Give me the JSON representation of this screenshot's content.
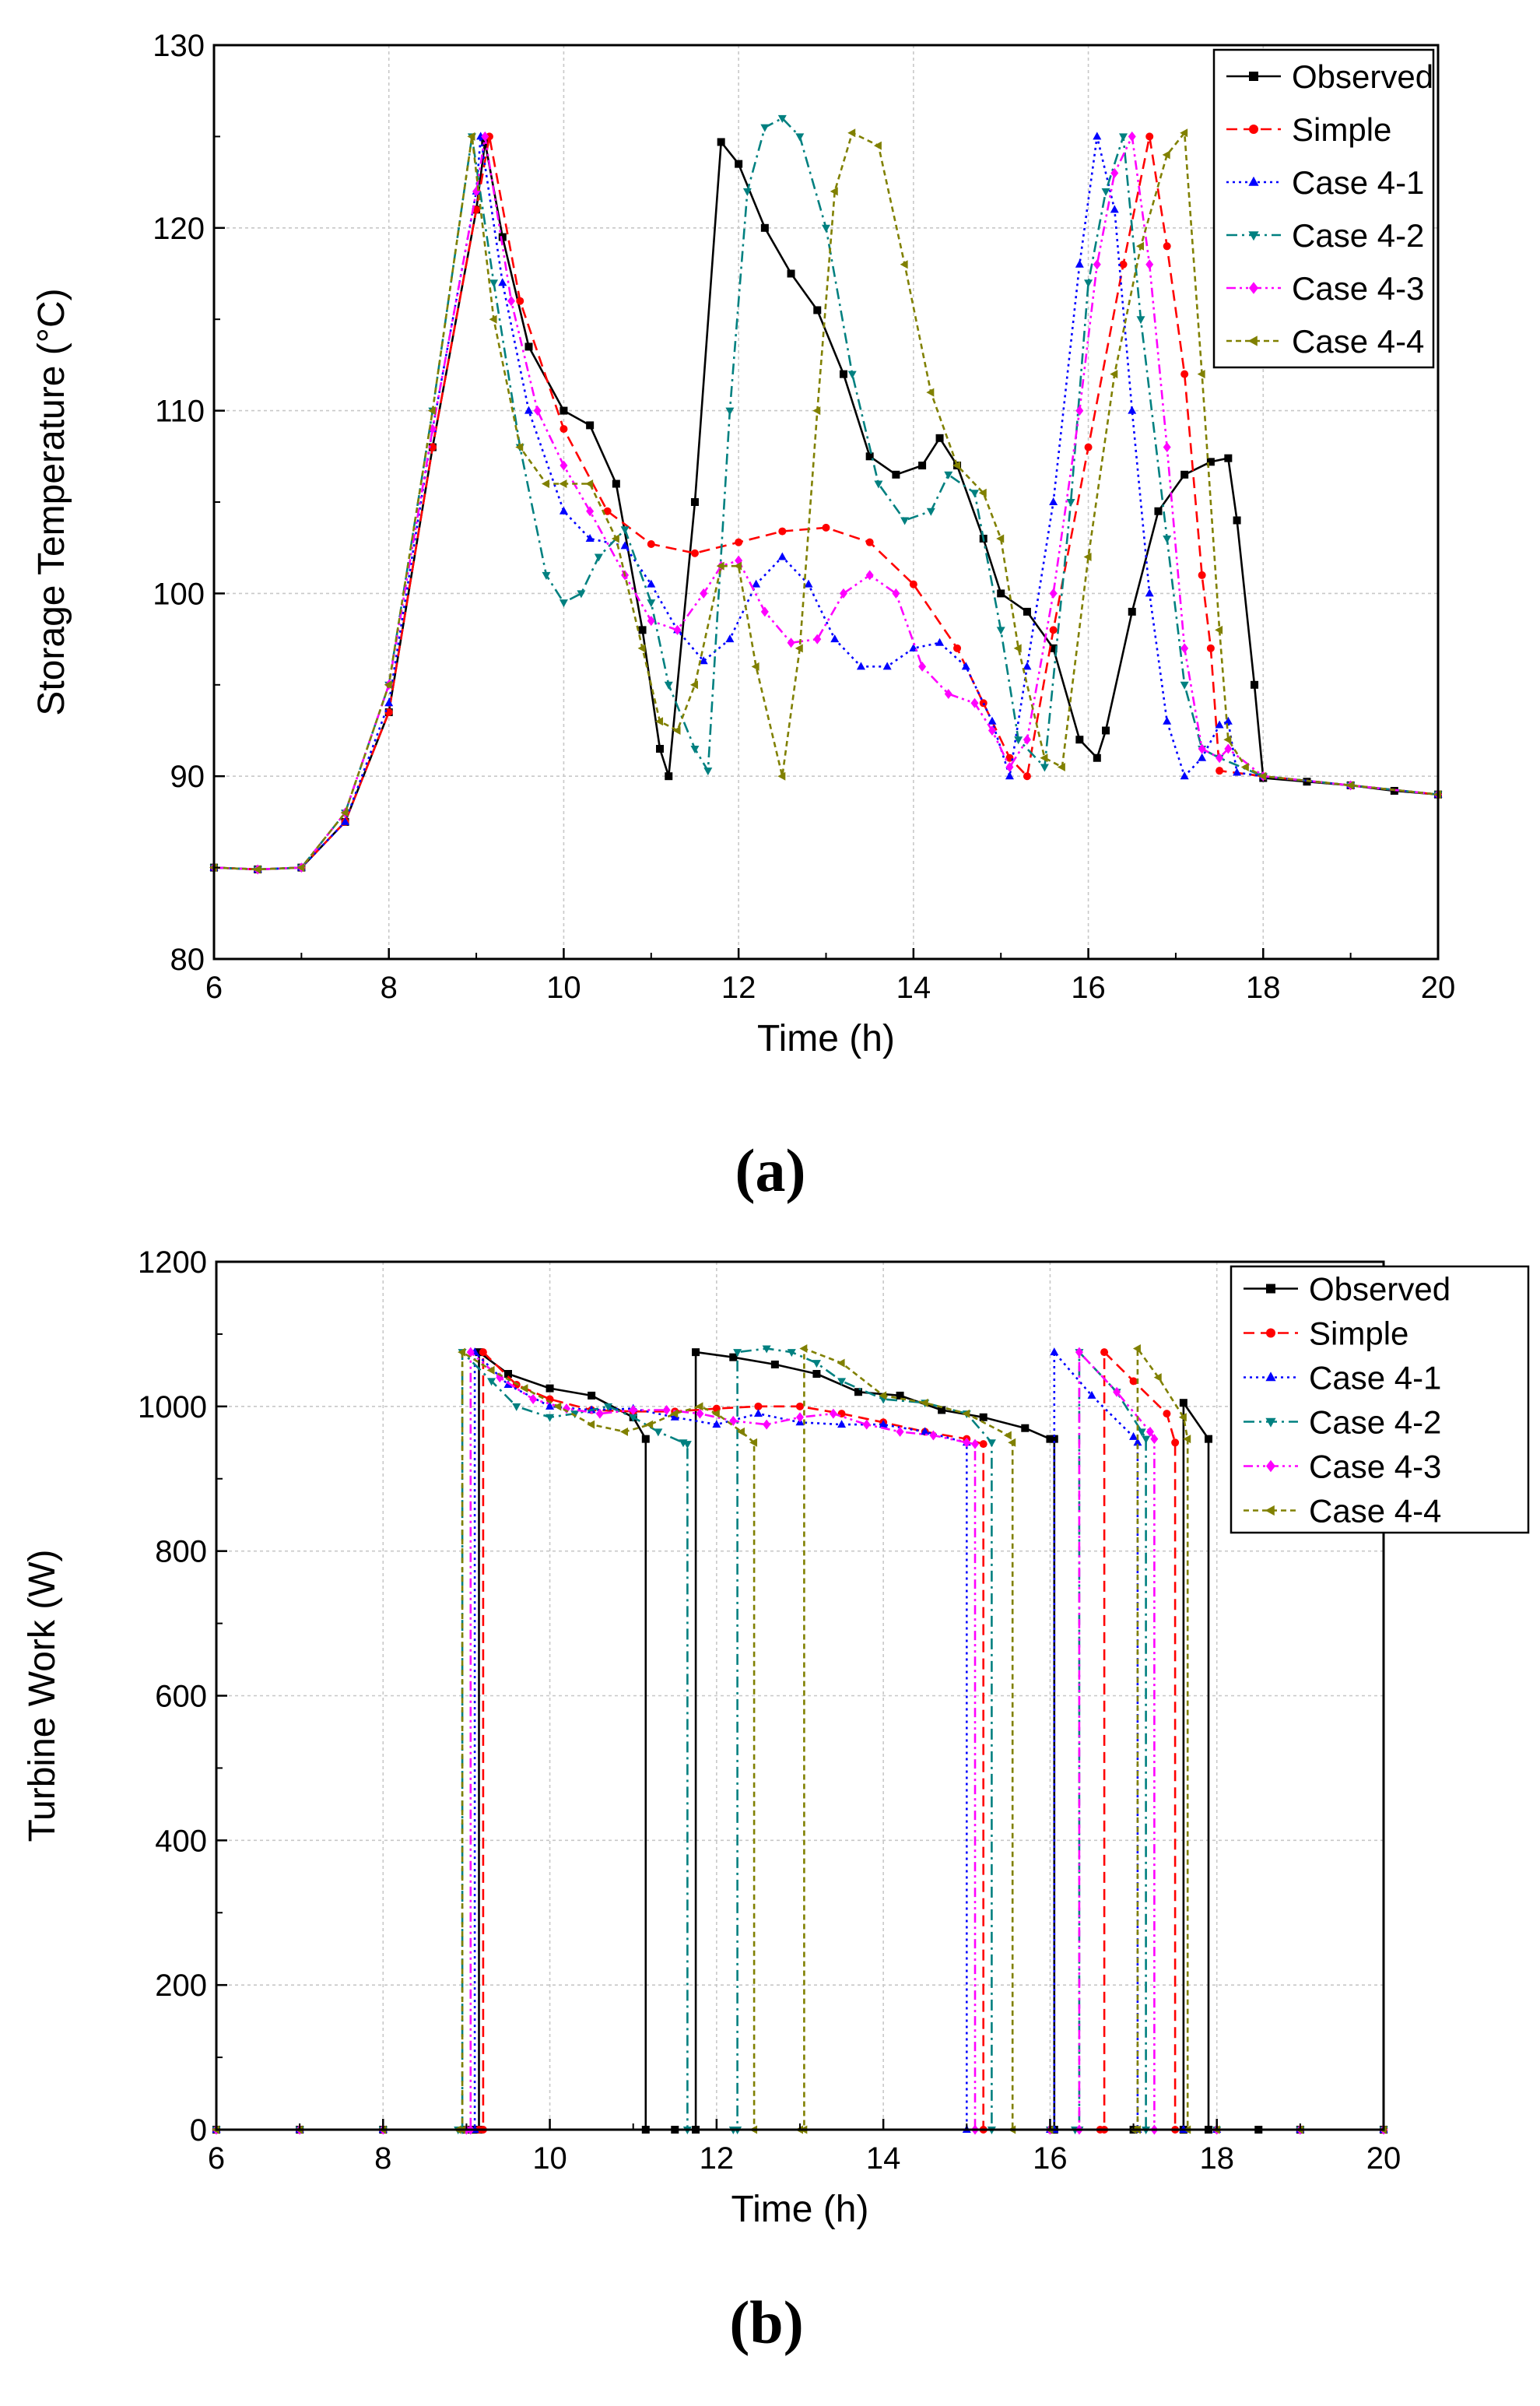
{
  "colors": {
    "Observed": "#000000",
    "Simple": "#ff0000",
    "Case 4-1": "#0000ff",
    "Case 4-2": "#008080",
    "Case 4-3": "#ff00ff",
    "Case 4-4": "#808000"
  },
  "chart_data": [
    {
      "type": "line",
      "panel_label_open": "(",
      "panel_label_letter": "a",
      "panel_label_close": ")",
      "title": "",
      "xlabel": "Time (h)",
      "ylabel": "Storage Temperature (°C)",
      "xlim": [
        6,
        20
      ],
      "ylim": [
        80,
        130
      ],
      "xticks": [
        "6",
        "8",
        "10",
        "12",
        "14",
        "16",
        "18",
        "20"
      ],
      "yticks": [
        "80",
        "90",
        "100",
        "110",
        "120",
        "130"
      ],
      "grid": true,
      "legend": "top-right",
      "series": [
        {
          "name": "Observed",
          "marker": "square",
          "dash": "solid",
          "x": [
            6,
            6.5,
            7,
            7.5,
            8,
            8.5,
            9,
            9.1,
            9.3,
            9.6,
            10,
            10.3,
            10.6,
            10.9,
            11.1,
            11.2,
            11.5,
            11.8,
            12,
            12.3,
            12.6,
            12.9,
            13.2,
            13.5,
            13.8,
            14.1,
            14.3,
            14.5,
            14.8,
            15,
            15.3,
            15.6,
            15.9,
            16.1,
            16.2,
            16.5,
            16.8,
            17.1,
            17.4,
            17.6,
            17.7,
            17.9,
            18,
            18.5,
            19,
            19.5,
            20
          ],
          "y": [
            85,
            84.9,
            85,
            87.5,
            93.5,
            108,
            121,
            124.7,
            119.5,
            113.5,
            110,
            109.2,
            106,
            98,
            91.5,
            90,
            105,
            124.7,
            123.5,
            120,
            117.5,
            115.5,
            112,
            107.5,
            106.5,
            107,
            108.5,
            107,
            103,
            100,
            99,
            97,
            92,
            91,
            92.5,
            99,
            104.5,
            106.5,
            107.2,
            107.4,
            104,
            95,
            89.9,
            89.7,
            89.5,
            89.2,
            89
          ]
        },
        {
          "name": "Simple",
          "marker": "circle",
          "dash": "dashed",
          "x": [
            6,
            6.5,
            7,
            7.5,
            8,
            8.5,
            9,
            9.15,
            9.5,
            10,
            10.5,
            11,
            11.5,
            12,
            12.5,
            13,
            13.5,
            14,
            14.5,
            14.8,
            15.1,
            15.3,
            15.6,
            16,
            16.4,
            16.7,
            16.9,
            17.1,
            17.3,
            17.4,
            17.5,
            18,
            19,
            20
          ],
          "y": [
            85,
            84.9,
            85,
            87.5,
            93.5,
            108,
            121,
            125,
            116,
            109,
            104.5,
            102.7,
            102.2,
            102.8,
            103.4,
            103.6,
            102.8,
            100.5,
            97,
            94,
            91,
            90,
            98,
            108,
            118,
            125,
            119,
            112,
            101,
            97,
            90.3,
            90,
            89.5,
            89
          ]
        },
        {
          "name": "Case 4-1",
          "marker": "triangle-up",
          "dash": "dotted",
          "x": [
            6,
            6.5,
            7,
            7.5,
            8,
            8.5,
            9,
            9.05,
            9.3,
            9.6,
            10,
            10.3,
            10.7,
            11,
            11.3,
            11.6,
            11.9,
            12.2,
            12.5,
            12.8,
            13.1,
            13.4,
            13.7,
            14,
            14.3,
            14.6,
            14.9,
            15.1,
            15.3,
            15.6,
            15.9,
            16.1,
            16.3,
            16.5,
            16.7,
            16.9,
            17.1,
            17.3,
            17.5,
            17.6,
            17.7,
            18,
            19,
            20
          ],
          "y": [
            85,
            84.9,
            85,
            87.5,
            94,
            109,
            122,
            125,
            117,
            110,
            104.5,
            103,
            102.6,
            100.5,
            98,
            96.3,
            97.5,
            100.5,
            102,
            100.5,
            97.5,
            96,
            96,
            97,
            97.3,
            96,
            93,
            90,
            96,
            105,
            118,
            125,
            121,
            110,
            100,
            93,
            90,
            91,
            92.8,
            93,
            90.2,
            90,
            89.5,
            89
          ]
        },
        {
          "name": "Case 4-2",
          "marker": "triangle-down",
          "dash": "dashdot",
          "x": [
            6,
            6.5,
            7,
            7.5,
            8,
            8.5,
            8.95,
            9.2,
            9.5,
            9.8,
            10,
            10.2,
            10.4,
            10.7,
            11,
            11.2,
            11.5,
            11.65,
            11.9,
            12.1,
            12.3,
            12.5,
            12.7,
            13,
            13.3,
            13.6,
            13.9,
            14.2,
            14.4,
            14.7,
            15,
            15.2,
            15.5,
            15.8,
            16,
            16.2,
            16.4,
            16.6,
            16.9,
            17.1,
            17.3,
            17.5,
            18,
            19,
            20
          ],
          "y": [
            85,
            84.9,
            85,
            88,
            95,
            110,
            125,
            117,
            108,
            101,
            99.5,
            100,
            102,
            103.5,
            99.5,
            95,
            91.5,
            90.3,
            110,
            122,
            125.5,
            126,
            125,
            120,
            112,
            106,
            104,
            104.5,
            106.5,
            105.5,
            98,
            92,
            90.5,
            105,
            117,
            122,
            125,
            115,
            103,
            95,
            91.5,
            91,
            90,
            89.5,
            89
          ]
        },
        {
          "name": "Case 4-3",
          "marker": "diamond",
          "dash": "dashdotdot",
          "x": [
            6,
            6.5,
            7,
            7.5,
            8,
            8.5,
            9,
            9.1,
            9.4,
            9.7,
            10,
            10.3,
            10.7,
            11,
            11.3,
            11.6,
            11.8,
            12,
            12.3,
            12.6,
            12.9,
            13.2,
            13.5,
            13.8,
            14.1,
            14.4,
            14.7,
            14.9,
            15.1,
            15.3,
            15.6,
            15.9,
            16.1,
            16.3,
            16.5,
            16.7,
            16.9,
            17.1,
            17.3,
            17.5,
            17.6,
            18,
            19,
            20
          ],
          "y": [
            85,
            84.9,
            85,
            88,
            95,
            109,
            122,
            125,
            116,
            110,
            107,
            104.5,
            101,
            98.5,
            98,
            100,
            101.5,
            101.8,
            99,
            97.3,
            97.5,
            100,
            101,
            100,
            96,
            94.5,
            94,
            92.5,
            90.5,
            92,
            100,
            110,
            118,
            123,
            125,
            118,
            108,
            97,
            91.5,
            91,
            91.5,
            90,
            89.5,
            89
          ]
        },
        {
          "name": "Case 4-4",
          "marker": "triangle-left",
          "dash": "shortdash",
          "x": [
            6,
            6.5,
            7,
            7.5,
            8,
            8.5,
            8.95,
            9.2,
            9.5,
            9.8,
            10,
            10.3,
            10.6,
            10.9,
            11.1,
            11.3,
            11.5,
            11.8,
            12,
            12.2,
            12.5,
            12.7,
            12.9,
            13.1,
            13.3,
            13.6,
            13.9,
            14.2,
            14.5,
            14.8,
            15,
            15.2,
            15.5,
            15.7,
            16,
            16.3,
            16.6,
            16.9,
            17.1,
            17.3,
            17.5,
            17.6,
            17.8,
            18,
            19,
            20
          ],
          "y": [
            85,
            84.9,
            85,
            88,
            95,
            110,
            125,
            115,
            108,
            106,
            106,
            106,
            103,
            97,
            93,
            92.5,
            95,
            101.5,
            101.5,
            96,
            90,
            97,
            110,
            122,
            125.2,
            124.5,
            118,
            111,
            107,
            105.5,
            103,
            97,
            91,
            90.5,
            102,
            112,
            119,
            124,
            125.2,
            112,
            98,
            92,
            90.5,
            90,
            89.5,
            89
          ]
        }
      ]
    },
    {
      "type": "line",
      "panel_label_open": "(",
      "panel_label_letter": "b",
      "panel_label_close": ")",
      "title": "",
      "xlabel": "Time (h)",
      "ylabel": "Turbine Work (W)",
      "xlim": [
        6,
        20
      ],
      "ylim": [
        0,
        1200
      ],
      "xticks": [
        "6",
        "8",
        "10",
        "12",
        "14",
        "16",
        "18",
        "20"
      ],
      "yticks": [
        "0",
        "200",
        "400",
        "600",
        "800",
        "1000",
        "1200"
      ],
      "grid": true,
      "legend": "top-right",
      "series": [
        {
          "name": "Observed",
          "marker": "square",
          "dash": "solid",
          "x": [
            6,
            7,
            8,
            9,
            9.1,
            9.15,
            9.15,
            9.5,
            10,
            10.5,
            11,
            11.15,
            11.15,
            11.5,
            11.75,
            11.75,
            12.2,
            12.7,
            13.2,
            13.7,
            14.2,
            14.7,
            15.2,
            15.7,
            16,
            16.05,
            16.05,
            17,
            17.6,
            17.6,
            17.9,
            17.9,
            18.5,
            19,
            20
          ],
          "y": [
            0,
            0,
            0,
            0,
            0,
            0,
            1075,
            1045,
            1025,
            1015,
            985,
            955,
            0,
            0,
            0,
            1075,
            1068,
            1058,
            1045,
            1020,
            1015,
            995,
            985,
            970,
            955,
            955,
            0,
            0,
            0,
            1005,
            955,
            0,
            0,
            0,
            0
          ]
        },
        {
          "name": "Simple",
          "marker": "circle",
          "dash": "dashed",
          "x": [
            6,
            7,
            8,
            9,
            9.15,
            9.2,
            9.2,
            9.6,
            10,
            10.5,
            11,
            11.5,
            12,
            12.5,
            13,
            13.5,
            14,
            14.5,
            15,
            15.2,
            15.2,
            16,
            16.6,
            16.65,
            16.65,
            17,
            17.4,
            17.5,
            17.5,
            18,
            19,
            20
          ],
          "y": [
            0,
            0,
            0,
            0,
            0,
            0,
            1075,
            1030,
            1010,
            995,
            993,
            993,
            997,
            1000,
            1000,
            990,
            978,
            965,
            955,
            948,
            0,
            0,
            0,
            0,
            1075,
            1035,
            990,
            950,
            0,
            0,
            0,
            0
          ]
        },
        {
          "name": "Case 4-1",
          "marker": "triangle-up",
          "dash": "dotted",
          "x": [
            6,
            7,
            8,
            9,
            9.05,
            9.1,
            9.1,
            9.5,
            10,
            10.5,
            11,
            11.5,
            12,
            12.5,
            13,
            13.5,
            14,
            14.5,
            15,
            15,
            16,
            16.05,
            16.05,
            16.5,
            17,
            17.05,
            17.05,
            17.6,
            17.6,
            18,
            19,
            20
          ],
          "y": [
            0,
            0,
            0,
            0,
            0,
            0,
            1075,
            1030,
            1000,
            995,
            997,
            985,
            975,
            990,
            978,
            975,
            975,
            965,
            950,
            0,
            0,
            0,
            1075,
            1015,
            958,
            950,
            0,
            0,
            0,
            0,
            0,
            0
          ]
        },
        {
          "name": "Case 4-2",
          "marker": "triangle-down",
          "dash": "dashdot",
          "x": [
            6,
            7,
            8,
            8.9,
            8.95,
            8.95,
            9.3,
            9.6,
            10,
            10.3,
            10.7,
            11,
            11.3,
            11.6,
            11.65,
            11.65,
            12.2,
            12.25,
            12.25,
            12.6,
            12.9,
            13.2,
            13.5,
            14,
            14.5,
            15,
            15.3,
            15.3,
            16,
            16.3,
            16.35,
            16.35,
            16.8,
            17.1,
            17.15,
            17.15,
            18,
            19,
            20
          ],
          "y": [
            0,
            0,
            0,
            0,
            0,
            1075,
            1035,
            1000,
            985,
            990,
            1000,
            985,
            965,
            950,
            948,
            0,
            0,
            0,
            1075,
            1080,
            1075,
            1060,
            1035,
            1010,
            1005,
            990,
            950,
            0,
            0,
            0,
            0,
            1075,
            1020,
            965,
            955,
            0,
            0,
            0,
            0
          ]
        },
        {
          "name": "Case 4-3",
          "marker": "diamond",
          "dash": "dashdotdot",
          "x": [
            6,
            7,
            8,
            9,
            9.05,
            9.05,
            9.4,
            9.8,
            10.2,
            10.6,
            11,
            11.4,
            11.8,
            12.2,
            12.6,
            13,
            13.4,
            13.8,
            14.2,
            14.6,
            15,
            15.1,
            15.1,
            16,
            16.35,
            16.35,
            16.8,
            17.2,
            17.25,
            17.25,
            18,
            19,
            20
          ],
          "y": [
            0,
            0,
            0,
            0,
            0,
            1075,
            1040,
            1010,
            997,
            990,
            995,
            995,
            990,
            980,
            975,
            985,
            990,
            975,
            965,
            960,
            950,
            948,
            0,
            0,
            0,
            1075,
            1020,
            965,
            955,
            0,
            0,
            0,
            0
          ]
        },
        {
          "name": "Case 4-4",
          "marker": "triangle-left",
          "dash": "shortdash",
          "x": [
            6,
            7,
            8,
            8.9,
            8.95,
            8.95,
            9.3,
            9.7,
            10.1,
            10.5,
            10.9,
            11.2,
            11.5,
            11.8,
            12,
            12.3,
            12.45,
            12.45,
            13,
            13.05,
            13.05,
            13.5,
            14,
            14.5,
            15,
            15.5,
            15.55,
            15.55,
            16,
            17,
            17.05,
            17.05,
            17.3,
            17.6,
            17.65,
            17.65,
            18,
            19,
            20
          ],
          "y": [
            0,
            0,
            0,
            0,
            0,
            1075,
            1050,
            1025,
            1000,
            975,
            965,
            975,
            990,
            1000,
            990,
            965,
            950,
            0,
            0,
            0,
            1080,
            1060,
            1015,
            1005,
            990,
            960,
            950,
            0,
            0,
            0,
            0,
            1080,
            1040,
            985,
            955,
            0,
            0,
            0,
            0
          ]
        }
      ]
    }
  ]
}
